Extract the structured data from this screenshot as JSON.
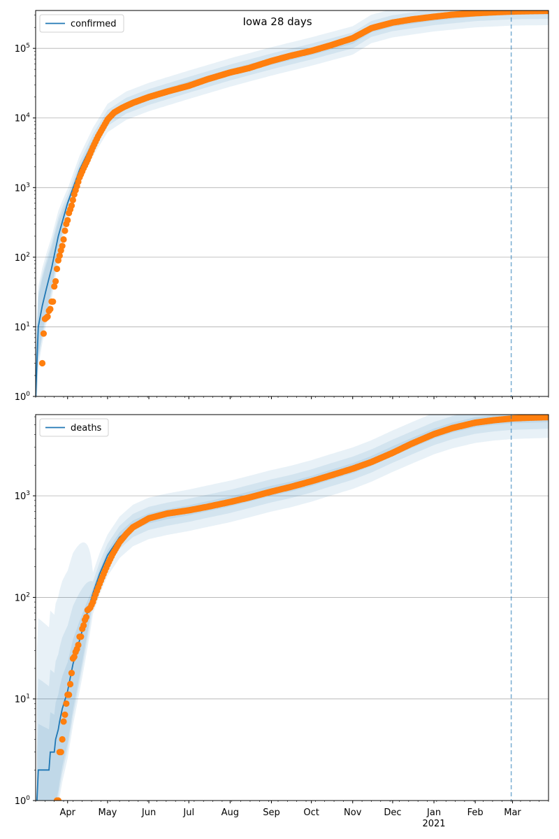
{
  "figure": {
    "title": "Iowa 28 days"
  },
  "colors": {
    "model_line": "#1f77b4",
    "observed": "#ff7f0e",
    "band": "#1f77b4",
    "grid": "#b0b0b0",
    "vline": "#1f77b4"
  },
  "chart_data": [
    {
      "type": "line",
      "panel": "top",
      "scale": "log",
      "ylim": [
        1,
        350000
      ],
      "yticks": [
        {
          "value": 1,
          "label": "10^0"
        },
        {
          "value": 10,
          "label": "10^1"
        },
        {
          "value": 100,
          "label": "10^2"
        },
        {
          "value": 1000,
          "label": "10^3"
        },
        {
          "value": 10000,
          "label": "10^4"
        },
        {
          "value": 100000,
          "label": "10^5"
        }
      ],
      "xlim": [
        "2020-03-08",
        "2021-03-28"
      ],
      "xticks": [
        "Apr",
        "May",
        "Jun",
        "Jul",
        "Aug",
        "Sep",
        "Oct",
        "Nov",
        "Dec",
        "Jan",
        "Feb",
        "Mar"
      ],
      "xtick_dates": [
        "2020-04-01",
        "2020-05-01",
        "2020-06-01",
        "2020-07-01",
        "2020-08-01",
        "2020-09-01",
        "2020-10-01",
        "2020-11-01",
        "2020-12-01",
        "2021-01-01",
        "2021-02-01",
        "2021-03-01"
      ],
      "year_label": "2021",
      "grid": true,
      "legend": "top-left",
      "vline_date": "2021-02-28",
      "series": [
        {
          "name": "confirmed",
          "kind": "model",
          "points": [
            [
              "2020-03-08",
              1
            ],
            [
              "2020-03-10",
              10
            ],
            [
              "2020-03-13",
              20
            ],
            [
              "2020-03-16",
              35
            ],
            [
              "2020-03-20",
              70
            ],
            [
              "2020-03-25",
              200
            ],
            [
              "2020-04-01",
              600
            ],
            [
              "2020-04-10",
              1800
            ],
            [
              "2020-04-20",
              4500
            ],
            [
              "2020-05-01",
              10000
            ],
            [
              "2020-05-15",
              15000
            ],
            [
              "2020-06-01",
              20000
            ],
            [
              "2020-07-01",
              30000
            ],
            [
              "2020-08-01",
              45000
            ],
            [
              "2020-09-01",
              65000
            ],
            [
              "2020-10-01",
              90000
            ],
            [
              "2020-11-01",
              130000
            ],
            [
              "2020-11-15",
              190000
            ],
            [
              "2020-12-01",
              230000
            ],
            [
              "2021-01-01",
              280000
            ],
            [
              "2021-02-01",
              320000
            ],
            [
              "2021-03-01",
              340000
            ],
            [
              "2021-03-28",
              345000
            ]
          ]
        },
        {
          "kind": "observed",
          "points": [
            [
              "2020-03-13",
              3
            ],
            [
              "2020-03-14",
              8
            ],
            [
              "2020-03-15",
              13
            ],
            [
              "2020-03-17",
              14
            ],
            [
              "2020-03-18",
              17
            ],
            [
              "2020-03-19",
              18
            ],
            [
              "2020-03-20",
              23
            ],
            [
              "2020-03-21",
              23
            ],
            [
              "2020-03-22",
              38
            ],
            [
              "2020-03-23",
              45
            ],
            [
              "2020-03-24",
              68
            ],
            [
              "2020-03-25",
              90
            ],
            [
              "2020-03-26",
              105
            ],
            [
              "2020-03-27",
              125
            ],
            [
              "2020-03-28",
              145
            ],
            [
              "2020-03-29",
              180
            ],
            [
              "2020-03-30",
              240
            ],
            [
              "2020-03-31",
              300
            ],
            [
              "2020-04-01",
              340
            ],
            [
              "2020-04-02",
              430
            ],
            [
              "2020-04-04",
              550
            ],
            [
              "2020-04-06",
              800
            ],
            [
              "2020-04-08",
              1050
            ],
            [
              "2020-04-10",
              1400
            ],
            [
              "2020-04-13",
              1900
            ],
            [
              "2020-04-16",
              2500
            ],
            [
              "2020-04-20",
              3800
            ],
            [
              "2020-04-24",
              5500
            ],
            [
              "2020-04-28",
              7500
            ],
            [
              "2020-05-01",
              9500
            ],
            [
              "2020-05-06",
              12000
            ],
            [
              "2020-05-12",
              14000
            ],
            [
              "2020-05-20",
              16500
            ],
            [
              "2020-06-01",
              20000
            ],
            [
              "2020-06-15",
              24000
            ],
            [
              "2020-07-01",
              29000
            ],
            [
              "2020-07-15",
              36000
            ],
            [
              "2020-08-01",
              45000
            ],
            [
              "2020-08-15",
              52000
            ],
            [
              "2020-09-01",
              66000
            ],
            [
              "2020-09-15",
              78000
            ],
            [
              "2020-10-01",
              92000
            ],
            [
              "2020-10-15",
              110000
            ],
            [
              "2020-11-01",
              140000
            ],
            [
              "2020-11-15",
              195000
            ],
            [
              "2020-12-01",
              235000
            ],
            [
              "2020-12-15",
              260000
            ],
            [
              "2021-01-01",
              285000
            ],
            [
              "2021-01-15",
              305000
            ],
            [
              "2021-02-01",
              320000
            ],
            [
              "2021-02-15",
              330000
            ],
            [
              "2021-03-01",
              338000
            ],
            [
              "2021-03-15",
              343000
            ],
            [
              "2021-03-28",
              346000
            ]
          ]
        }
      ]
    },
    {
      "type": "line",
      "panel": "bottom",
      "scale": "log",
      "ylim": [
        1,
        6300
      ],
      "yticks": [
        {
          "value": 1,
          "label": "10^0"
        },
        {
          "value": 10,
          "label": "10^1"
        },
        {
          "value": 100,
          "label": "10^2"
        },
        {
          "value": 1000,
          "label": "10^3"
        }
      ],
      "xlim": [
        "2020-03-08",
        "2021-03-28"
      ],
      "xticks": [
        "Apr",
        "May",
        "Jun",
        "Jul",
        "Aug",
        "Sep",
        "Oct",
        "Nov",
        "Dec",
        "Jan",
        "Feb",
        "Mar"
      ],
      "xtick_dates": [
        "2020-04-01",
        "2020-05-01",
        "2020-06-01",
        "2020-07-01",
        "2020-08-01",
        "2020-09-01",
        "2020-10-01",
        "2020-11-01",
        "2020-12-01",
        "2021-01-01",
        "2021-02-01",
        "2021-03-01"
      ],
      "year_label": "2021",
      "grid": true,
      "legend": "top-left",
      "vline_date": "2021-02-28",
      "series": [
        {
          "name": "deaths",
          "kind": "model",
          "points": [
            [
              "2020-03-09",
              1
            ],
            [
              "2020-03-10",
              2
            ],
            [
              "2020-03-18",
              2
            ],
            [
              "2020-03-19",
              3
            ],
            [
              "2020-03-22",
              3
            ],
            [
              "2020-03-23",
              4
            ],
            [
              "2020-03-25",
              5
            ],
            [
              "2020-03-26",
              6
            ],
            [
              "2020-03-28",
              8
            ],
            [
              "2020-04-01",
              12
            ],
            [
              "2020-04-05",
              22
            ],
            [
              "2020-04-10",
              38
            ],
            [
              "2020-04-15",
              65
            ],
            [
              "2020-04-20",
              110
            ],
            [
              "2020-04-25",
              170
            ],
            [
              "2020-05-01",
              260
            ],
            [
              "2020-05-10",
              390
            ],
            [
              "2020-05-20",
              510
            ],
            [
              "2020-06-01",
              600
            ],
            [
              "2020-06-15",
              660
            ],
            [
              "2020-07-01",
              720
            ],
            [
              "2020-07-15",
              790
            ],
            [
              "2020-08-01",
              880
            ],
            [
              "2020-08-15",
              980
            ],
            [
              "2020-09-01",
              1120
            ],
            [
              "2020-09-15",
              1230
            ],
            [
              "2020-10-01",
              1400
            ],
            [
              "2020-10-15",
              1600
            ],
            [
              "2020-11-01",
              1870
            ],
            [
              "2020-11-15",
              2200
            ],
            [
              "2020-12-01",
              2750
            ],
            [
              "2020-12-15",
              3300
            ],
            [
              "2021-01-01",
              4100
            ],
            [
              "2021-01-15",
              4700
            ],
            [
              "2021-02-01",
              5300
            ],
            [
              "2021-02-15",
              5600
            ],
            [
              "2021-03-01",
              5800
            ],
            [
              "2021-03-28",
              5950
            ]
          ]
        },
        {
          "kind": "observed",
          "points": [
            [
              "2020-03-24",
              1
            ],
            [
              "2020-03-25",
              1
            ],
            [
              "2020-03-26",
              3
            ],
            [
              "2020-03-27",
              3
            ],
            [
              "2020-03-28",
              4
            ],
            [
              "2020-03-29",
              6
            ],
            [
              "2020-03-30",
              7
            ],
            [
              "2020-03-31",
              9
            ],
            [
              "2020-04-01",
              11
            ],
            [
              "2020-04-02",
              11
            ],
            [
              "2020-04-03",
              14
            ],
            [
              "2020-04-04",
              18
            ],
            [
              "2020-04-05",
              25
            ],
            [
              "2020-04-06",
              26
            ],
            [
              "2020-04-07",
              29
            ],
            [
              "2020-04-08",
              31
            ],
            [
              "2020-04-09",
              34
            ],
            [
              "2020-04-10",
              41
            ],
            [
              "2020-04-11",
              41
            ],
            [
              "2020-04-12",
              49
            ],
            [
              "2020-04-13",
              53
            ],
            [
              "2020-04-14",
              60
            ],
            [
              "2020-04-15",
              64
            ],
            [
              "2020-04-16",
              75
            ],
            [
              "2020-04-18",
              79
            ],
            [
              "2020-04-20",
              90
            ],
            [
              "2020-04-22",
              107
            ],
            [
              "2020-04-25",
              136
            ],
            [
              "2020-04-28",
              170
            ],
            [
              "2020-05-01",
              210
            ],
            [
              "2020-05-05",
              270
            ],
            [
              "2020-05-10",
              350
            ],
            [
              "2020-05-15",
              420
            ],
            [
              "2020-05-20",
              490
            ],
            [
              "2020-06-01",
              600
            ],
            [
              "2020-06-15",
              670
            ],
            [
              "2020-07-01",
              720
            ],
            [
              "2020-07-15",
              780
            ],
            [
              "2020-08-01",
              870
            ],
            [
              "2020-08-15",
              960
            ],
            [
              "2020-09-01",
              1100
            ],
            [
              "2020-09-15",
              1220
            ],
            [
              "2020-10-01",
              1390
            ],
            [
              "2020-10-15",
              1580
            ],
            [
              "2020-11-01",
              1850
            ],
            [
              "2020-11-15",
              2150
            ],
            [
              "2020-12-01",
              2650
            ],
            [
              "2020-12-15",
              3250
            ],
            [
              "2021-01-01",
              4050
            ],
            [
              "2021-01-15",
              4650
            ],
            [
              "2021-02-01",
              5250
            ],
            [
              "2021-02-15",
              5550
            ],
            [
              "2021-03-01",
              5780
            ],
            [
              "2021-03-15",
              5880
            ],
            [
              "2021-03-28",
              5950
            ]
          ]
        }
      ]
    }
  ]
}
